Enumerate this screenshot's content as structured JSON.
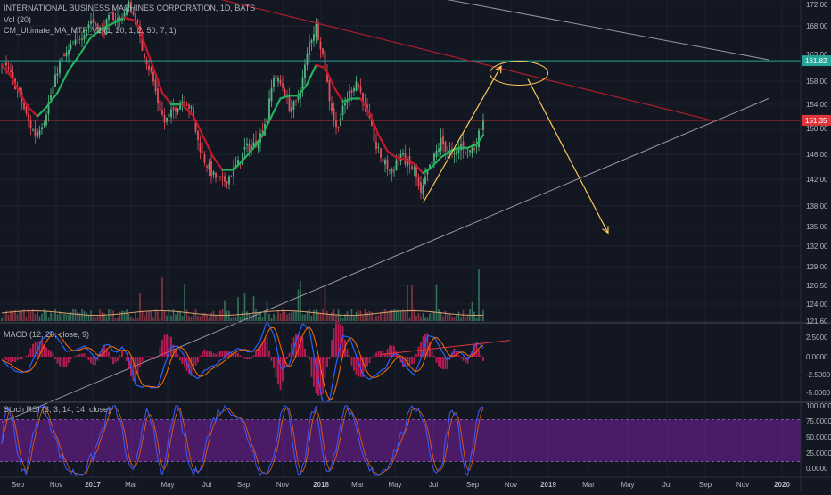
{
  "header": {
    "title": "INTERNATIONAL BUSINESS MACHINES CORPORATION, 1D, BATS",
    "vol_label": "Vol (20)",
    "ma_label": "CM_Ultimate_MA_MTF_V2 (1, 20, 1, 2, 50, 7, 1)"
  },
  "colors": {
    "background": "#131722",
    "up_candle": "#53b987",
    "down_candle": "#eb4d5c",
    "ma_up": "#21b35b",
    "ma_down": "#c4172b",
    "resistance_line": "#ac1d2c",
    "trend_line": "#9598a1",
    "arrow": "#ffc857",
    "teal_level": "#26a69a",
    "red_level": "#e0353b",
    "macd_line": "#2962ff",
    "signal_line": "#ff6d00",
    "histogram": "#e91e63",
    "stoch_k": "#3d5afe",
    "stoch_d": "#ff6d00",
    "stoch_band": "#7b1fa2"
  },
  "chart_data": [
    {
      "type": "candlestick",
      "name": "price",
      "y_axis_ticks": [
        "172.00",
        "168.00",
        "163.00",
        "158.00",
        "154.00",
        "150.00",
        "146.00",
        "142.00",
        "138.00",
        "135.00",
        "132.00",
        "129.00",
        "126.50",
        "124.00",
        "121.60"
      ],
      "price_labels": {
        "teal_level": "161.82",
        "red_level": "151.35"
      },
      "ylim": [
        121.6,
        172
      ],
      "x_axis_ticks": [
        "Sep",
        "Nov",
        "2017",
        "Mar",
        "May",
        "Jul",
        "Sep",
        "Nov",
        "2018",
        "Mar",
        "May",
        "Jul",
        "Sep",
        "Nov",
        "2019",
        "Mar",
        "May",
        "Jul",
        "Sep",
        "Nov",
        "2020"
      ],
      "close_path": [
        [
          0,
          161
        ],
        [
          3,
          160
        ],
        [
          8,
          155.5
        ],
        [
          12,
          151
        ],
        [
          15,
          149
        ],
        [
          19,
          151.5
        ],
        [
          23,
          157
        ],
        [
          26,
          161.5
        ],
        [
          31,
          164
        ],
        [
          36,
          166.5
        ],
        [
          40,
          169
        ],
        [
          45,
          167
        ],
        [
          49,
          170
        ],
        [
          53,
          169
        ],
        [
          57,
          172
        ],
        [
          60,
          169
        ],
        [
          63,
          164
        ],
        [
          67,
          159.5
        ],
        [
          70,
          154.5
        ],
        [
          73,
          151
        ],
        [
          76,
          152.5
        ],
        [
          79,
          154
        ],
        [
          82,
          155
        ],
        [
          85,
          153
        ],
        [
          88,
          148
        ],
        [
          91,
          145
        ],
        [
          95,
          142.5
        ],
        [
          99,
          141.5
        ],
        [
          102,
          142.5
        ],
        [
          106,
          144.5
        ],
        [
          109,
          146.8
        ],
        [
          113,
          147.5
        ],
        [
          116,
          149
        ],
        [
          119,
          152
        ],
        [
          122,
          159
        ],
        [
          126,
          157
        ],
        [
          129,
          153.5
        ],
        [
          132,
          154
        ],
        [
          135,
          158.5
        ],
        [
          138,
          165
        ],
        [
          141,
          168
        ],
        [
          144,
          163
        ],
        [
          147,
          155
        ],
        [
          150,
          150
        ],
        [
          153,
          153
        ],
        [
          156,
          156
        ],
        [
          159,
          158
        ],
        [
          162,
          155
        ],
        [
          165,
          151
        ],
        [
          168,
          147
        ],
        [
          171,
          145
        ],
        [
          173,
          144
        ],
        [
          175,
          143
        ],
        [
          177,
          145
        ],
        [
          179,
          146
        ],
        [
          182,
          144.5
        ],
        [
          185,
          143.5
        ],
        [
          188,
          139.5
        ],
        [
          191,
          143
        ],
        [
          194,
          145.5
        ],
        [
          197,
          148
        ],
        [
          200,
          146.5
        ],
        [
          203,
          145.5
        ],
        [
          206,
          147.5
        ],
        [
          209,
          146.5
        ],
        [
          212,
          147
        ],
        [
          214,
          149
        ],
        [
          216,
          152
        ]
      ],
      "ma_path": [
        [
          0,
          161
        ],
        [
          4,
          159
        ],
        [
          8,
          156
        ],
        [
          12,
          153.5
        ],
        [
          16,
          152
        ],
        [
          20,
          153.5
        ],
        [
          25,
          156
        ],
        [
          30,
          160
        ],
        [
          35,
          163
        ],
        [
          40,
          166
        ],
        [
          45,
          167.5
        ],
        [
          50,
          168.5
        ],
        [
          55,
          169.5
        ],
        [
          60,
          169
        ],
        [
          64,
          165
        ],
        [
          68,
          160.5
        ],
        [
          72,
          156
        ],
        [
          76,
          154
        ],
        [
          81,
          154
        ],
        [
          86,
          152
        ],
        [
          90,
          149
        ],
        [
          95,
          145.5
        ],
        [
          99,
          143.5
        ],
        [
          104,
          143.5
        ],
        [
          108,
          145
        ],
        [
          113,
          147
        ],
        [
          117,
          149
        ],
        [
          121,
          152
        ],
        [
          125,
          155
        ],
        [
          129,
          155.5
        ],
        [
          133,
          155.5
        ],
        [
          137,
          157.5
        ],
        [
          141,
          161
        ],
        [
          145,
          160.5
        ],
        [
          149,
          157
        ],
        [
          153,
          154.5
        ],
        [
          157,
          155
        ],
        [
          161,
          155
        ],
        [
          165,
          152.5
        ],
        [
          169,
          149
        ],
        [
          173,
          146.5
        ],
        [
          177,
          145.5
        ],
        [
          181,
          145.2
        ],
        [
          185,
          144.5
        ],
        [
          189,
          143
        ],
        [
          193,
          144
        ],
        [
          197,
          145.5
        ],
        [
          201,
          146.5
        ],
        [
          205,
          147
        ],
        [
          209,
          147
        ],
        [
          213,
          147.5
        ],
        [
          216,
          149
        ]
      ],
      "annotations": {
        "resistance_line": [
          [
            0,
            183
          ],
          [
            320,
            151.2
          ]
        ],
        "grey_line": [
          [
            0,
            188.5
          ],
          [
            344,
            162
          ]
        ],
        "support_line": [
          [
            0,
            109
          ],
          [
            344,
            155
          ]
        ],
        "teal_level": 161.82,
        "red_level": 151.35,
        "up_arrow": [
          [
            189,
            138.5
          ],
          [
            224,
            160.8
          ]
        ],
        "down_arrow": [
          [
            236,
            158.4
          ],
          [
            272,
            134
          ]
        ],
        "ellipse": {
          "center": [
            232,
            159.5
          ],
          "rx_bars": 13,
          "ry_price": 2.2
        }
      }
    },
    {
      "type": "bar",
      "name": "volume",
      "seed": 7,
      "max_bar": 216
    },
    {
      "type": "line",
      "name": "MACD (12, 26, close, 9)",
      "label": "MACD (12, 26, close, 9)",
      "y_axis_ticks": [
        "2.5000",
        "0.0000",
        "-2.5000",
        "-5.0000"
      ],
      "ylim": [
        -5.3,
        3.6
      ],
      "zero": 0,
      "divergence_line": [
        [
          170,
          0.3
        ],
        [
          228,
          2.3
        ]
      ]
    },
    {
      "type": "line",
      "name": "Stoch RSI (3, 3, 14, 14, close)",
      "label": "Stoch RSI (3, 3, 14, 14, close)",
      "y_axis_ticks": [
        "100.0000",
        "75.0000",
        "50.0000",
        "25.0000",
        "0.0000"
      ],
      "ylim": [
        0,
        100
      ],
      "band": [
        20,
        80
      ]
    }
  ]
}
